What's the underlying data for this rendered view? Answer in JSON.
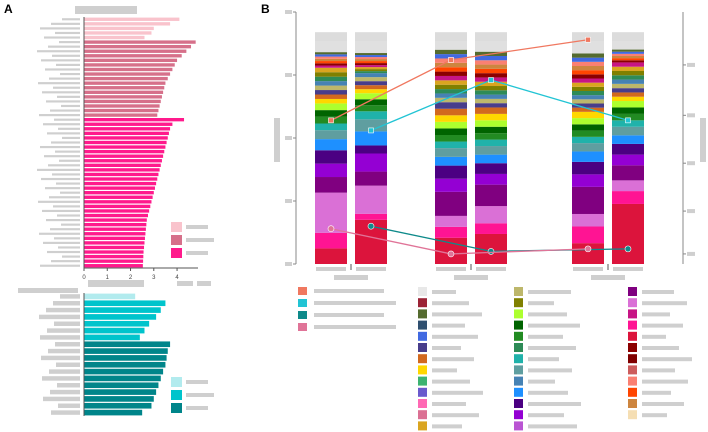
{
  "panel_labels": {
    "a": "A",
    "b": "B"
  },
  "chart_data": [
    {
      "id": "A-top",
      "type": "bar",
      "orientation": "horizontal",
      "title": "",
      "xlabel": "",
      "ylabel": "",
      "xlim": [
        0,
        4.9
      ],
      "x_ticks": [
        "0",
        "1",
        "2",
        "3",
        "4"
      ],
      "legend_colors": [
        "#f9c3cc",
        "#d6708a",
        "#ff1a8c"
      ],
      "groups": [
        {
          "color": "#f9c3cc",
          "values": [
            4.1,
            3.7,
            3.0,
            2.9,
            2.6
          ]
        },
        {
          "color": "#d6708a",
          "values": [
            4.8,
            4.6,
            4.4,
            4.2,
            4.0,
            3.9,
            3.8,
            3.7,
            3.6,
            3.5,
            3.45,
            3.4,
            3.35,
            3.3,
            3.25,
            3.2,
            3.15
          ]
        },
        {
          "color": "#ff1a8c",
          "values": [
            4.3,
            3.8,
            3.7,
            3.65,
            3.6,
            3.55,
            3.5,
            3.45,
            3.4,
            3.35,
            3.3,
            3.25,
            3.2,
            3.15,
            3.1,
            3.05,
            3.0,
            2.95,
            2.9,
            2.85,
            2.8,
            2.75,
            2.7,
            2.68,
            2.66,
            2.64,
            2.62,
            2.6,
            2.58,
            2.56,
            2.55,
            2.54,
            2.53
          ]
        }
      ]
    },
    {
      "id": "A-bottom",
      "type": "bar",
      "orientation": "horizontal",
      "title": "",
      "xlim": [
        0,
        4.9
      ],
      "legend_colors": [
        "#b2ebee",
        "#00c4cc",
        "#00858a"
      ],
      "groups": [
        {
          "color": "#b2ebee",
          "values": [
            2.2
          ]
        },
        {
          "color": "#00c4cc",
          "values": [
            3.5,
            3.3,
            3.1,
            2.8,
            2.6,
            2.4
          ]
        },
        {
          "color": "#00858a",
          "values": [
            3.7,
            3.6,
            3.55,
            3.5,
            3.4,
            3.3,
            3.2,
            3.1,
            3.0,
            2.9,
            2.5
          ]
        }
      ]
    },
    {
      "id": "B",
      "type": "stacked-bar-with-lines",
      "title": "",
      "ylim": [
        0,
        1
      ],
      "group_count": 3,
      "bars_per_group": 2,
      "palette": [
        "#e8e8e8",
        "#9b2335",
        "#556b2f",
        "#2f4f6f",
        "#4169e1",
        "#483d8b",
        "#d2691e",
        "#ffd700",
        "#3cb371",
        "#6a5acd",
        "#ff69b4",
        "#db7093",
        "#daa520",
        "#bdb76b",
        "#808000",
        "#adff2f",
        "#006400",
        "#228b22",
        "#2e8b57",
        "#20b2aa",
        "#5f9ea0",
        "#4682b4",
        "#1e90ff",
        "#4b0082",
        "#9400d3",
        "#ba55d3",
        "#800080",
        "#da70d6",
        "#c71585",
        "#ff1493",
        "#dc143c",
        "#8b0000",
        "#800000",
        "#cd5c5c",
        "#fa8072",
        "#ff4500",
        "#cd853f",
        "#f5deb3"
      ],
      "bars": [
        {
          "group": 0,
          "segments": [
            0.07,
            0.07,
            0.18,
            0.07,
            0.06,
            0.06,
            0.05,
            0.04,
            0.03,
            0.03,
            0.03,
            0.03,
            0.02,
            0.02,
            0.02,
            0.02,
            0.02,
            0.02,
            0.02,
            0.02,
            0.01,
            0.01,
            0.01,
            0.01,
            0.01,
            0.01,
            0.01,
            0.05
          ]
        },
        {
          "group": 0,
          "segments": [
            0.22,
            0.03,
            0.14,
            0.07,
            0.09,
            0.04,
            0.07,
            0.06,
            0.04,
            0.03,
            0.03,
            0.03,
            0.02,
            0.02,
            0.02,
            0.02,
            0.02,
            0.01,
            0.01,
            0.01,
            0.01,
            0.01,
            0.01,
            0.01,
            0.01,
            0.01,
            0.01,
            0.06
          ]
        },
        {
          "group": 1,
          "segments": [
            0.12,
            0.05,
            0.05,
            0.11,
            0.06,
            0.06,
            0.04,
            0.04,
            0.03,
            0.03,
            0.03,
            0.03,
            0.03,
            0.03,
            0.03,
            0.02,
            0.02,
            0.02,
            0.02,
            0.02,
            0.02,
            0.02,
            0.02,
            0.02,
            0.02,
            0.02,
            0.02,
            0.04
          ]
        },
        {
          "group": 1,
          "segments": [
            0.14,
            0.05,
            0.08,
            0.1,
            0.05,
            0.05,
            0.04,
            0.04,
            0.03,
            0.03,
            0.03,
            0.03,
            0.03,
            0.03,
            0.02,
            0.02,
            0.02,
            0.02,
            0.02,
            0.02,
            0.02,
            0.02,
            0.02,
            0.02,
            0.02,
            0.02,
            0.02,
            0.05
          ]
        },
        {
          "group": 2,
          "segments": [
            0.1,
            0.08,
            0.06,
            0.13,
            0.06,
            0.06,
            0.05,
            0.04,
            0.03,
            0.03,
            0.03,
            0.03,
            0.03,
            0.02,
            0.02,
            0.02,
            0.02,
            0.02,
            0.02,
            0.02,
            0.02,
            0.02,
            0.02,
            0.02,
            0.02,
            0.02,
            0.02,
            0.06
          ]
        },
        {
          "group": 2,
          "segments": [
            0.28,
            0.06,
            0.05,
            0.07,
            0.05,
            0.05,
            0.04,
            0.04,
            0.03,
            0.03,
            0.03,
            0.03,
            0.02,
            0.02,
            0.02,
            0.02,
            0.02,
            0.02,
            0.02,
            0.02,
            0.02,
            0.01,
            0.01,
            0.01,
            0.01,
            0.01,
            0.01,
            0.04
          ]
        }
      ],
      "lines": [
        {
          "color": "#f07860",
          "marker": "square",
          "values": [
            0.57,
            0.81,
            0.89
          ]
        },
        {
          "color": "#22c4d4",
          "marker": "square",
          "values": [
            0.53,
            0.73,
            0.57
          ]
        },
        {
          "color": "#0e8a8a",
          "marker": "circle",
          "values": [
            0.15,
            0.05,
            0.06
          ]
        },
        {
          "color": "#e07498",
          "marker": "circle",
          "values": [
            0.14,
            0.04,
            0.06
          ]
        }
      ],
      "legend_line_colors": [
        "#f07860",
        "#22c4d4",
        "#0e8a8a",
        "#e07498"
      ]
    }
  ]
}
